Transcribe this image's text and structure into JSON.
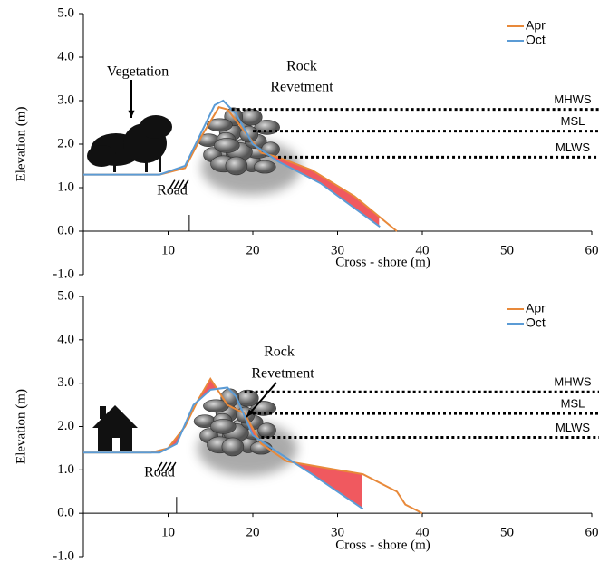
{
  "chart_data": [
    {
      "type": "line",
      "xlabel": "Cross - shore (m)",
      "ylabel": "Elevation (m)",
      "xlim": [
        0,
        60
      ],
      "ylim": [
        -1,
        5
      ],
      "xticks": [
        10,
        20,
        30,
        40,
        50,
        60
      ],
      "yticks": [
        {
          "value": -1,
          "label": "-1.0"
        },
        {
          "value": 0,
          "label": "0.0"
        },
        {
          "value": 1,
          "label": "1.0"
        },
        {
          "value": 2,
          "label": "2.0"
        },
        {
          "value": 3,
          "label": "3.0"
        },
        {
          "value": 4,
          "label": "4.0"
        },
        {
          "value": 5,
          "label": "5.0"
        }
      ],
      "legend": "upper right",
      "fill_color": "#f0595f",
      "series": [
        {
          "name": "Apr",
          "color": "#e8893a",
          "x": [
            0,
            9,
            12,
            14,
            16,
            17,
            19,
            21,
            23,
            27,
            32,
            37
          ],
          "values": [
            1.3,
            1.3,
            1.45,
            2.2,
            2.85,
            2.8,
            2.3,
            1.8,
            1.7,
            1.4,
            0.8,
            0.0
          ]
        },
        {
          "name": "Oct",
          "color": "#5b9bd5",
          "x": [
            0,
            9,
            12,
            14,
            15.5,
            16.5,
            18,
            20,
            23,
            28,
            35
          ],
          "values": [
            1.3,
            1.3,
            1.5,
            2.3,
            2.9,
            3.0,
            2.7,
            2.0,
            1.6,
            1.1,
            0.1
          ]
        }
      ],
      "levels": [
        {
          "label": "MHWS",
          "value": 2.8,
          "start": 17.5
        },
        {
          "label": "MSL",
          "value": 2.3,
          "start": 20
        },
        {
          "label": "MLWS",
          "value": 1.7,
          "start": 23
        }
      ],
      "annotations": [
        "Vegetation",
        "Rock",
        "Revetment",
        "Road"
      ]
    },
    {
      "type": "line",
      "xlabel": "Cross - shore (m)",
      "ylabel": "Elevation (m)",
      "xlim": [
        0,
        60
      ],
      "ylim": [
        -1,
        5
      ],
      "xticks": [
        10,
        20,
        30,
        40,
        50,
        60
      ],
      "yticks": [
        {
          "value": -1,
          "label": "-1.0"
        },
        {
          "value": 0,
          "label": "0.0"
        },
        {
          "value": 1,
          "label": "1.0"
        },
        {
          "value": 2,
          "label": "2.0"
        },
        {
          "value": 3,
          "label": "3.0"
        },
        {
          "value": 4,
          "label": "4.0"
        },
        {
          "value": 5,
          "label": "5.0"
        }
      ],
      "legend": "upper right",
      "fill_color": "#f0595f",
      "series": [
        {
          "name": "Apr",
          "color": "#e8893a",
          "x": [
            0,
            8,
            10,
            12,
            13.5,
            15,
            17,
            19,
            21,
            24,
            33,
            36,
            37,
            38,
            40
          ],
          "values": [
            1.4,
            1.4,
            1.5,
            2.0,
            2.6,
            3.1,
            2.5,
            2.3,
            1.6,
            1.2,
            0.9,
            0.6,
            0.5,
            0.2,
            0.0
          ]
        },
        {
          "name": "Oct",
          "color": "#5b9bd5",
          "x": [
            0,
            9,
            11,
            13,
            15,
            17,
            18,
            20,
            23,
            27,
            33
          ],
          "values": [
            1.4,
            1.4,
            1.6,
            2.5,
            2.85,
            2.9,
            2.7,
            1.8,
            1.4,
            0.9,
            0.1
          ]
        }
      ],
      "levels": [
        {
          "label": "MHWS",
          "value": 2.8,
          "start": 19
        },
        {
          "label": "MSL",
          "value": 2.3,
          "start": 20
        },
        {
          "label": "MLWS",
          "value": 1.75,
          "start": 21
        }
      ],
      "annotations": [
        "Rock",
        "Revetment",
        "Road"
      ]
    }
  ]
}
